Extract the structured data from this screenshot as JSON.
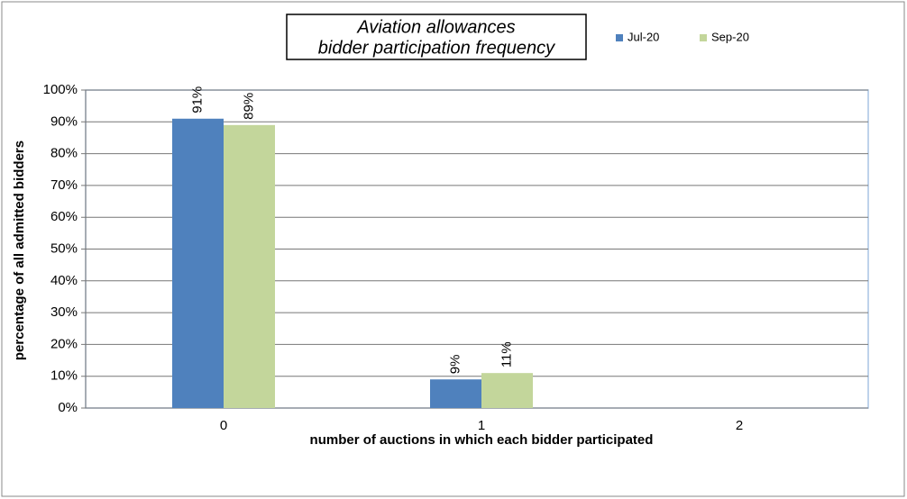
{
  "chart_data": {
    "type": "bar",
    "title_lines": [
      "Aviation allowances",
      "bidder participation frequency"
    ],
    "x_label": "number of auctions in which each bidder participated",
    "y_label": "percentage of all admitted bidders",
    "categories": [
      "0",
      "1",
      "2"
    ],
    "series": [
      {
        "name": "Jul-20",
        "color": "#4f81bd",
        "values": [
          91,
          9,
          null
        ],
        "value_labels": [
          "91%",
          "9%",
          null
        ]
      },
      {
        "name": "Sep-20",
        "color": "#c3d69b",
        "values": [
          89,
          11,
          null
        ],
        "value_labels": [
          "89%",
          "11%",
          null
        ]
      }
    ],
    "ylim": [
      0,
      100
    ],
    "yticks": [
      {
        "value": 0,
        "label": "0%"
      },
      {
        "value": 10,
        "label": "10%"
      },
      {
        "value": 20,
        "label": "20%"
      },
      {
        "value": 30,
        "label": "30%"
      },
      {
        "value": 40,
        "label": "40%"
      },
      {
        "value": 50,
        "label": "50%"
      },
      {
        "value": 60,
        "label": "60%"
      },
      {
        "value": 70,
        "label": "70%"
      },
      {
        "value": 80,
        "label": "80%"
      },
      {
        "value": 90,
        "label": "90%"
      },
      {
        "value": 100,
        "label": "100%"
      }
    ],
    "grid": true,
    "legend": "top-right"
  }
}
